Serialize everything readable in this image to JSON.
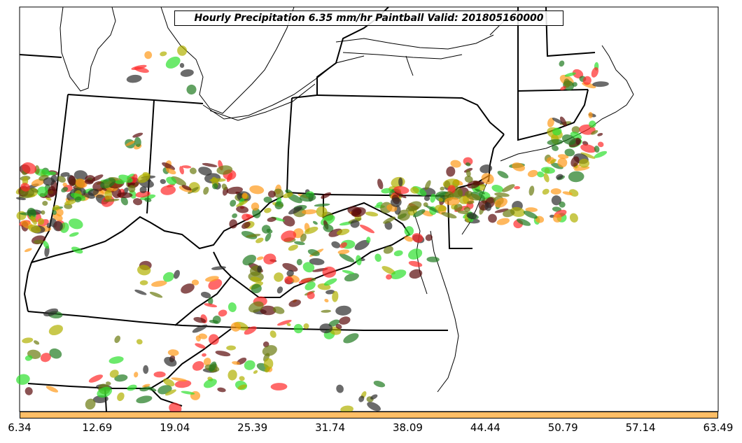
{
  "title": "Hourly Precipitation 6.35 mm/hr Paintball Valid: 201805160000",
  "colorbar": {
    "color": "#ffbe66",
    "ticks": [
      "6.34",
      "12.69",
      "19.04",
      "25.39",
      "31.74",
      "38.09",
      "44.44",
      "50.79",
      "57.14",
      "63.49"
    ]
  },
  "member_colors": [
    "#2c2c2c",
    "#5a0a0a",
    "#1f7a1f",
    "#2ee02e",
    "#6b7a10",
    "#ff9a1a",
    "#ff2a2a",
    "#b0b000"
  ]
}
